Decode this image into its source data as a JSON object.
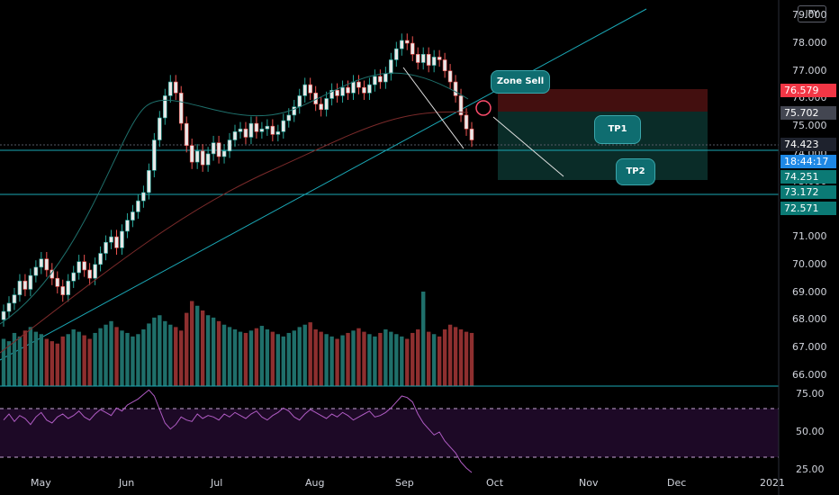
{
  "currency": "JPY",
  "colors": {
    "up": "#26a69a",
    "down": "#ef5350",
    "vol_up": "#1f6f6a",
    "vol_down": "#8e2f2f",
    "trend": "#1aa7b5",
    "ema": "#7a2a2a",
    "rsi": "#b05cc4",
    "zone_sell": "#7a1c1c",
    "zone_tp": "#0d3b36"
  },
  "price_axis": {
    "labels": [
      "79.000",
      "78.000",
      "77.000",
      "76.000",
      "75.000",
      "74.000",
      "73.000",
      "71.000",
      "70.000",
      "69.000",
      "68.000",
      "67.000",
      "66.000"
    ]
  },
  "price_tags": [
    {
      "text": "76.579",
      "bg": "#f23645"
    },
    {
      "text": "75.702",
      "bg": "#434651"
    },
    {
      "text": "74.423",
      "bg": "#1e222d"
    },
    {
      "text": "18:44:17",
      "bg": "#1e88e5"
    },
    {
      "text": "74.251",
      "bg": "#0b7a75"
    },
    {
      "text": "73.172",
      "bg": "#0b7a75"
    },
    {
      "text": "72.571",
      "bg": "#0b7a75"
    }
  ],
  "rsi_axis": {
    "labels": [
      "75.00",
      "50.00",
      "25.00"
    ]
  },
  "time_axis": {
    "labels": [
      "May",
      "Jun",
      "Jul",
      "Aug",
      "Sep",
      "Oct",
      "Nov",
      "Dec",
      "2021"
    ]
  },
  "annotations": {
    "zone_sell": "Zone Sell",
    "tp1": "TP1",
    "tp2": "TP2"
  },
  "chart_data": {
    "type": "candlestick",
    "y_range": [
      65.6,
      79.4
    ],
    "rsi_range": [
      20,
      80
    ],
    "x_labels": [
      "May",
      "Jun",
      "Jul",
      "Aug",
      "Sep",
      "Oct",
      "Nov",
      "Dec",
      "2021"
    ],
    "levels": [
      76.579,
      75.702,
      74.423,
      74.251,
      73.172,
      72.571
    ],
    "closes": [
      68.3,
      68.6,
      68.9,
      69.4,
      69.1,
      69.6,
      69.9,
      70.2,
      69.8,
      69.5,
      69.2,
      68.9,
      69.4,
      69.7,
      70.1,
      69.8,
      69.5,
      70.0,
      70.4,
      70.8,
      71.0,
      70.6,
      71.2,
      71.6,
      71.9,
      72.3,
      72.6,
      73.4,
      74.5,
      75.3,
      76.1,
      76.6,
      76.2,
      75.1,
      74.3,
      73.7,
      74.1,
      73.6,
      74.0,
      74.4,
      73.9,
      74.1,
      74.5,
      74.8,
      74.9,
      74.6,
      75.1,
      74.8,
      74.9,
      75.0,
      74.7,
      74.8,
      75.2,
      75.4,
      75.7,
      76.1,
      76.5,
      76.2,
      75.8,
      75.6,
      76.0,
      76.3,
      76.1,
      76.4,
      76.2,
      76.6,
      76.4,
      76.2,
      76.5,
      76.8,
      76.6,
      76.9,
      77.4,
      77.8,
      78.1,
      78.0,
      77.6,
      77.3,
      77.6,
      77.2,
      77.5,
      77.4,
      77.0,
      76.6,
      76.1,
      75.4,
      74.9,
      74.5
    ],
    "volume": [
      40,
      38,
      45,
      42,
      47,
      50,
      46,
      44,
      40,
      38,
      36,
      42,
      44,
      48,
      46,
      43,
      40,
      45,
      49,
      52,
      55,
      50,
      47,
      45,
      42,
      44,
      48,
      53,
      58,
      60,
      55,
      52,
      50,
      47,
      62,
      72,
      68,
      64,
      60,
      58,
      55,
      52,
      50,
      48,
      46,
      45,
      47,
      49,
      51,
      48,
      46,
      44,
      42,
      45,
      47,
      50,
      52,
      54,
      48,
      46,
      44,
      42,
      40,
      43,
      45,
      47,
      49,
      46,
      44,
      42,
      45,
      48,
      46,
      44,
      42,
      40,
      45,
      48,
      80,
      46,
      44,
      42,
      48,
      52,
      50,
      48,
      46,
      45
    ],
    "rsi": [
      58,
      62,
      57,
      61,
      59,
      55,
      60,
      63,
      58,
      56,
      60,
      62,
      59,
      61,
      64,
      60,
      58,
      62,
      65,
      63,
      61,
      66,
      64,
      68,
      70,
      72,
      75,
      78,
      74,
      65,
      56,
      52,
      55,
      60,
      58,
      57,
      62,
      59,
      61,
      60,
      58,
      62,
      60,
      63,
      61,
      59,
      62,
      64,
      60,
      58,
      61,
      63,
      66,
      64,
      60,
      58,
      62,
      65,
      63,
      61,
      59,
      62,
      60,
      63,
      61,
      58,
      60,
      62,
      64,
      60,
      61,
      63,
      66,
      70,
      74,
      73,
      70,
      62,
      56,
      52,
      48,
      50,
      44,
      40,
      36,
      30,
      26,
      23
    ]
  }
}
